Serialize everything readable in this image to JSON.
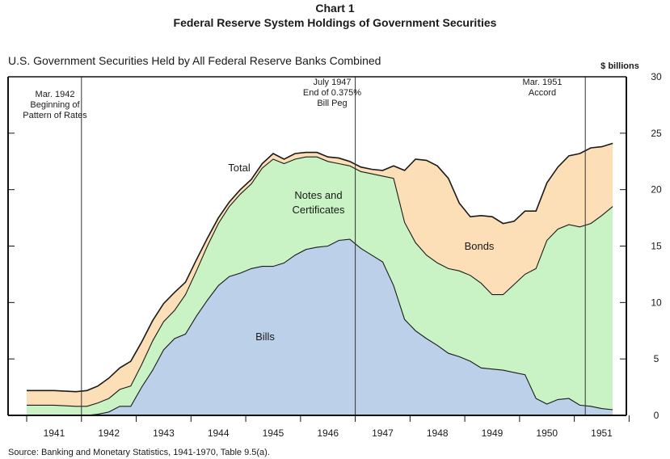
{
  "header": {
    "chart_number": "Chart 1",
    "title": "Federal Reserve System Holdings of Government Securities"
  },
  "subtitle": "U.S. Government Securities Held by All Federal Reserve Banks Combined",
  "source": "Source:  Banking and Monetary Statistics, 1941-1970, Table 9.5(a).",
  "colors": {
    "bills": "#bdd0ea",
    "notes": "#c9f2c5",
    "bonds": "#fcdfb6",
    "outline": "#1a1a1a"
  },
  "chart_data": {
    "type": "area",
    "stacked": true,
    "title": "Federal Reserve System Holdings of Government Securities",
    "ylabel": "$ billions",
    "ylim": [
      0,
      30
    ],
    "xlim": [
      1941.0,
      1952.0
    ],
    "y_ticks": [
      0,
      5,
      10,
      15,
      20,
      25,
      30
    ],
    "x_tick_labels": [
      "1941",
      "1942",
      "1943",
      "1944",
      "1945",
      "1946",
      "1947",
      "1948",
      "1949",
      "1950",
      "1951"
    ],
    "grid": false,
    "x": [
      1941.0,
      1941.5,
      1941.9,
      1942.1,
      1942.3,
      1942.5,
      1942.7,
      1942.9,
      1943.1,
      1943.3,
      1943.5,
      1943.7,
      1943.9,
      1944.1,
      1944.3,
      1944.5,
      1944.7,
      1944.9,
      1945.1,
      1945.3,
      1945.5,
      1945.7,
      1945.9,
      1946.1,
      1946.3,
      1946.5,
      1946.7,
      1946.9,
      1947.1,
      1947.3,
      1947.5,
      1947.7,
      1947.9,
      1948.1,
      1948.3,
      1948.5,
      1948.7,
      1948.9,
      1949.1,
      1949.3,
      1949.5,
      1949.7,
      1949.9,
      1950.1,
      1950.3,
      1950.5,
      1950.7,
      1950.9,
      1951.1,
      1951.3,
      1951.5,
      1951.7
    ],
    "series": [
      {
        "name": "Bills",
        "values": [
          0.0,
          0.0,
          0.0,
          0.0,
          0.1,
          0.3,
          0.8,
          0.8,
          2.5,
          4.0,
          5.8,
          6.8,
          7.2,
          8.8,
          10.2,
          11.5,
          12.3,
          12.6,
          13.0,
          13.2,
          13.2,
          13.5,
          14.2,
          14.7,
          14.9,
          15.0,
          15.5,
          15.6,
          14.8,
          14.2,
          13.6,
          11.5,
          8.5,
          7.5,
          6.8,
          6.2,
          5.5,
          5.2,
          4.8,
          4.2,
          4.1,
          4.0,
          3.8,
          3.6,
          1.5,
          1.0,
          1.4,
          1.5,
          0.9,
          0.8,
          0.6,
          0.5
        ]
      },
      {
        "name": "Notes and Certificates",
        "values": [
          0.9,
          0.9,
          0.8,
          0.8,
          1.0,
          1.2,
          1.5,
          1.8,
          2.0,
          2.6,
          2.5,
          2.5,
          3.5,
          4.0,
          4.8,
          5.5,
          6.2,
          7.0,
          7.5,
          8.7,
          9.5,
          8.8,
          8.5,
          8.2,
          8.0,
          7.5,
          6.8,
          6.5,
          6.8,
          7.2,
          7.6,
          9.5,
          8.6,
          7.8,
          7.4,
          7.3,
          7.5,
          7.6,
          7.6,
          7.5,
          6.6,
          6.7,
          7.8,
          8.9,
          11.5,
          14.5,
          15.1,
          15.4,
          15.8,
          16.2,
          17.1,
          18.0
        ]
      },
      {
        "name": "Bonds",
        "values": [
          1.3,
          1.3,
          1.3,
          1.4,
          1.5,
          1.8,
          1.9,
          2.2,
          2.0,
          1.8,
          1.6,
          1.6,
          1.1,
          1.0,
          0.7,
          0.5,
          0.4,
          0.4,
          0.4,
          0.4,
          0.5,
          0.4,
          0.5,
          0.4,
          0.4,
          0.4,
          0.5,
          0.4,
          0.4,
          0.4,
          0.5,
          1.1,
          4.6,
          7.4,
          8.4,
          8.6,
          8.0,
          6.0,
          5.2,
          6.0,
          6.9,
          6.3,
          5.6,
          5.6,
          5.1,
          5.1,
          5.5,
          6.1,
          6.5,
          6.7,
          6.1,
          5.6
        ]
      }
    ],
    "total_label": "Total",
    "area_labels": [
      "Bills",
      "Notes and Certificates",
      "Bonds"
    ],
    "annotations": [
      {
        "x": 1942.0,
        "lines": [
          "Mar. 1942",
          "Beginning of",
          "Pattern of Rates"
        ]
      },
      {
        "x": 1947.0,
        "lines": [
          "July 1947",
          "End of 0.375%",
          "Bill Peg"
        ]
      },
      {
        "x": 1951.2,
        "lines": [
          "Mar. 1951",
          "Accord"
        ]
      }
    ]
  }
}
